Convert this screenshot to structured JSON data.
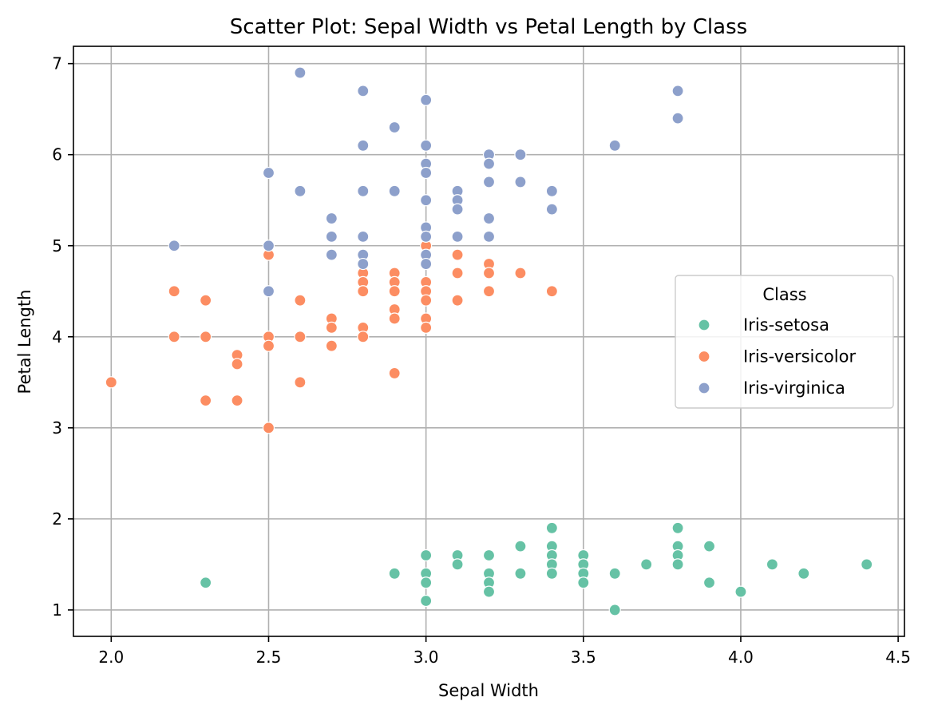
{
  "chart_data": {
    "type": "scatter",
    "title": "Scatter Plot: Sepal Width vs Petal Length by Class",
    "xlabel": "Sepal Width",
    "ylabel": "Petal Length",
    "xlim": [
      1.88,
      4.52
    ],
    "ylim": [
      0.71,
      7.19
    ],
    "xticks": [
      2.0,
      2.5,
      3.0,
      3.5,
      4.0,
      4.5
    ],
    "xtick_labels": [
      "2.0",
      "2.5",
      "3.0",
      "3.5",
      "4.0",
      "4.5"
    ],
    "yticks": [
      1,
      2,
      3,
      4,
      5,
      6,
      7
    ],
    "ytick_labels": [
      "1",
      "2",
      "3",
      "4",
      "5",
      "6",
      "7"
    ],
    "grid": true,
    "legend": {
      "title": "Class",
      "placement": "center-right"
    },
    "series": [
      {
        "name": "Iris-setosa",
        "color": "#66c2a5",
        "points": [
          [
            2.3,
            1.3
          ],
          [
            2.9,
            1.4
          ],
          [
            3.0,
            1.6
          ],
          [
            3.0,
            1.4
          ],
          [
            3.0,
            1.3
          ],
          [
            3.0,
            1.1
          ],
          [
            3.1,
            1.6
          ],
          [
            3.1,
            1.5
          ],
          [
            3.2,
            1.6
          ],
          [
            3.2,
            1.4
          ],
          [
            3.2,
            1.3
          ],
          [
            3.2,
            1.2
          ],
          [
            3.3,
            1.7
          ],
          [
            3.3,
            1.4
          ],
          [
            3.4,
            1.9
          ],
          [
            3.4,
            1.7
          ],
          [
            3.4,
            1.6
          ],
          [
            3.4,
            1.5
          ],
          [
            3.4,
            1.4
          ],
          [
            3.5,
            1.6
          ],
          [
            3.5,
            1.5
          ],
          [
            3.5,
            1.4
          ],
          [
            3.5,
            1.3
          ],
          [
            3.6,
            1.4
          ],
          [
            3.6,
            1.0
          ],
          [
            3.7,
            1.5
          ],
          [
            3.8,
            1.9
          ],
          [
            3.8,
            1.7
          ],
          [
            3.8,
            1.6
          ],
          [
            3.8,
            1.5
          ],
          [
            3.9,
            1.7
          ],
          [
            3.9,
            1.3
          ],
          [
            4.0,
            1.2
          ],
          [
            4.1,
            1.5
          ],
          [
            4.2,
            1.4
          ],
          [
            4.4,
            1.5
          ]
        ]
      },
      {
        "name": "Iris-versicolor",
        "color": "#fc8d62",
        "points": [
          [
            2.0,
            3.5
          ],
          [
            2.2,
            4.5
          ],
          [
            2.2,
            4.0
          ],
          [
            2.3,
            4.4
          ],
          [
            2.3,
            4.0
          ],
          [
            2.3,
            3.3
          ],
          [
            2.4,
            3.8
          ],
          [
            2.4,
            3.7
          ],
          [
            2.4,
            3.3
          ],
          [
            2.5,
            4.9
          ],
          [
            2.5,
            4.0
          ],
          [
            2.5,
            3.9
          ],
          [
            2.5,
            3.0
          ],
          [
            2.6,
            4.4
          ],
          [
            2.6,
            4.0
          ],
          [
            2.6,
            3.5
          ],
          [
            2.7,
            4.2
          ],
          [
            2.7,
            4.1
          ],
          [
            2.7,
            3.9
          ],
          [
            2.8,
            4.8
          ],
          [
            2.8,
            4.7
          ],
          [
            2.8,
            4.6
          ],
          [
            2.8,
            4.5
          ],
          [
            2.8,
            4.1
          ],
          [
            2.8,
            4.0
          ],
          [
            2.9,
            4.7
          ],
          [
            2.9,
            4.6
          ],
          [
            2.9,
            4.5
          ],
          [
            2.9,
            4.3
          ],
          [
            2.9,
            4.2
          ],
          [
            2.9,
            3.6
          ],
          [
            3.0,
            5.0
          ],
          [
            3.0,
            4.6
          ],
          [
            3.0,
            4.5
          ],
          [
            3.0,
            4.4
          ],
          [
            3.0,
            4.2
          ],
          [
            3.0,
            4.1
          ],
          [
            3.1,
            4.9
          ],
          [
            3.1,
            4.7
          ],
          [
            3.1,
            4.4
          ],
          [
            3.2,
            4.8
          ],
          [
            3.2,
            4.7
          ],
          [
            3.2,
            4.5
          ],
          [
            3.3,
            4.7
          ],
          [
            3.4,
            4.5
          ]
        ]
      },
      {
        "name": "Iris-virginica",
        "color": "#8da0cb",
        "points": [
          [
            2.2,
            5.0
          ],
          [
            2.5,
            5.8
          ],
          [
            2.5,
            5.0
          ],
          [
            2.5,
            4.5
          ],
          [
            2.6,
            6.9
          ],
          [
            2.6,
            5.6
          ],
          [
            2.7,
            5.3
          ],
          [
            2.7,
            5.1
          ],
          [
            2.7,
            4.9
          ],
          [
            2.8,
            6.7
          ],
          [
            2.8,
            6.1
          ],
          [
            2.8,
            5.6
          ],
          [
            2.8,
            5.1
          ],
          [
            2.8,
            4.9
          ],
          [
            2.8,
            4.8
          ],
          [
            2.9,
            6.3
          ],
          [
            2.9,
            5.6
          ],
          [
            3.0,
            6.6
          ],
          [
            3.0,
            6.1
          ],
          [
            3.0,
            5.9
          ],
          [
            3.0,
            5.8
          ],
          [
            3.0,
            5.5
          ],
          [
            3.0,
            5.2
          ],
          [
            3.0,
            5.1
          ],
          [
            3.0,
            4.9
          ],
          [
            3.0,
            4.8
          ],
          [
            3.1,
            5.6
          ],
          [
            3.1,
            5.5
          ],
          [
            3.1,
            5.4
          ],
          [
            3.1,
            5.1
          ],
          [
            3.2,
            6.0
          ],
          [
            3.2,
            5.9
          ],
          [
            3.2,
            5.7
          ],
          [
            3.2,
            5.3
          ],
          [
            3.2,
            5.1
          ],
          [
            3.3,
            6.0
          ],
          [
            3.3,
            5.7
          ],
          [
            3.4,
            5.6
          ],
          [
            3.4,
            5.4
          ],
          [
            3.6,
            6.1
          ],
          [
            3.8,
            6.7
          ],
          [
            3.8,
            6.4
          ]
        ]
      }
    ]
  }
}
